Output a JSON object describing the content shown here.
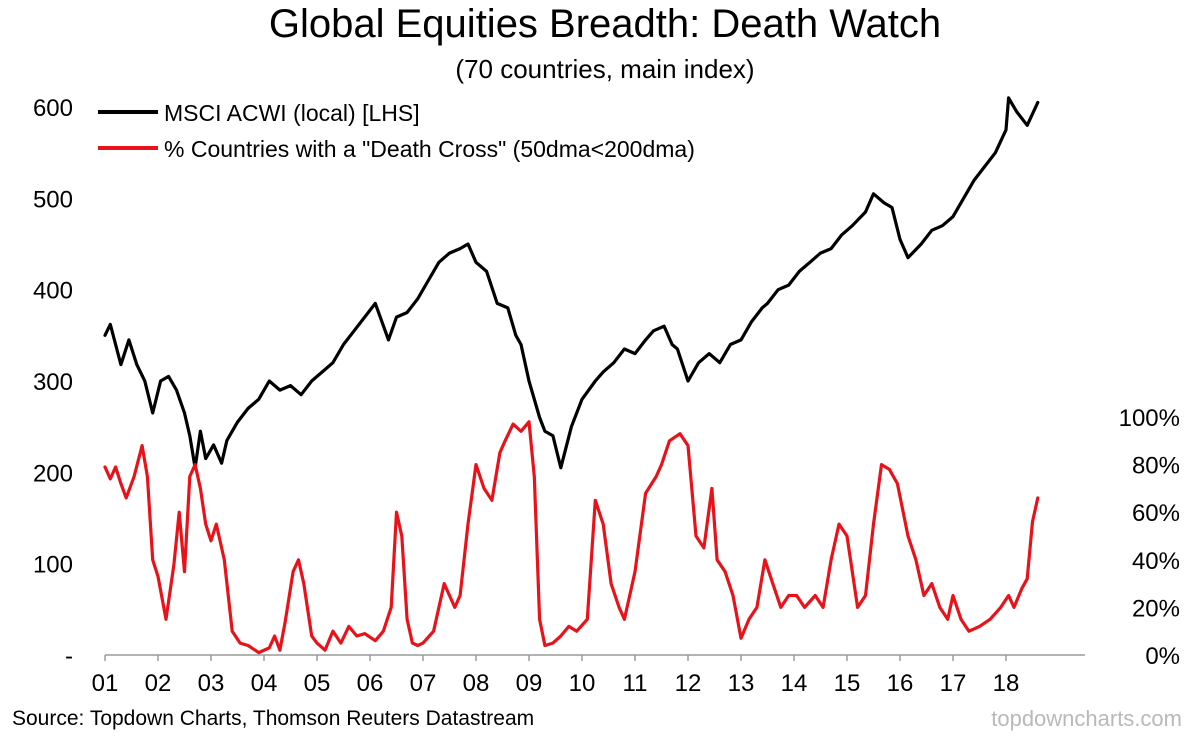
{
  "title": "Global Equities Breadth: Death Watch",
  "subtitle": "(70 countries, main index)",
  "source": "Source: Topdown Charts, Thomson Reuters Datastream",
  "watermark": "topdowncharts.com",
  "colors": {
    "series_1": "#000000",
    "series_2": "#e8131a",
    "watermark": "#b9b9b9"
  },
  "chart_data": {
    "type": "line",
    "grid": false,
    "legend_position": "top-left",
    "x_range": [
      2001.0,
      2018.6
    ],
    "x_tick_labels": [
      "01",
      "02",
      "03",
      "04",
      "05",
      "06",
      "07",
      "08",
      "09",
      "10",
      "11",
      "12",
      "13",
      "14",
      "15",
      "16",
      "17",
      "18"
    ],
    "left_axis": {
      "range": [
        0,
        600
      ],
      "tick_labels": [
        "-",
        "100",
        "200",
        "300",
        "400",
        "500",
        "600"
      ]
    },
    "right_axis": {
      "range": [
        0,
        1.0
      ],
      "tick_labels": [
        "0%",
        "20%",
        "40%",
        "60%",
        "80%",
        "100%"
      ]
    },
    "series": [
      {
        "name": "MSCI ACWI (local) [LHS]",
        "axis": "left",
        "x": [
          2001.0,
          2001.1,
          2001.2,
          2001.3,
          2001.45,
          2001.6,
          2001.75,
          2001.9,
          2002.05,
          2002.2,
          2002.35,
          2002.5,
          2002.6,
          2002.7,
          2002.8,
          2002.9,
          2003.05,
          2003.2,
          2003.3,
          2003.5,
          2003.7,
          2003.9,
          2004.1,
          2004.3,
          2004.5,
          2004.7,
          2004.9,
          2005.1,
          2005.3,
          2005.5,
          2005.7,
          2005.9,
          2006.1,
          2006.35,
          2006.5,
          2006.7,
          2006.9,
          2007.1,
          2007.3,
          2007.5,
          2007.7,
          2007.85,
          2008.0,
          2008.2,
          2008.4,
          2008.6,
          2008.75,
          2008.85,
          2009.0,
          2009.2,
          2009.3,
          2009.45,
          2009.6,
          2009.8,
          2010.0,
          2010.25,
          2010.4,
          2010.6,
          2010.8,
          2011.0,
          2011.2,
          2011.35,
          2011.55,
          2011.7,
          2011.8,
          2012.0,
          2012.2,
          2012.4,
          2012.6,
          2012.8,
          2013.0,
          2013.2,
          2013.4,
          2013.5,
          2013.7,
          2013.9,
          2014.1,
          2014.3,
          2014.5,
          2014.7,
          2014.9,
          2015.1,
          2015.35,
          2015.5,
          2015.7,
          2015.85,
          2016.0,
          2016.15,
          2016.4,
          2016.6,
          2016.8,
          2017.0,
          2017.2,
          2017.4,
          2017.6,
          2017.8,
          2018.0,
          2018.05,
          2018.2,
          2018.4,
          2018.6
        ],
        "y": [
          350,
          362,
          340,
          318,
          345,
          318,
          300,
          265,
          300,
          305,
          290,
          265,
          240,
          205,
          245,
          215,
          230,
          210,
          235,
          255,
          270,
          280,
          300,
          290,
          295,
          285,
          300,
          310,
          320,
          340,
          355,
          370,
          385,
          345,
          370,
          375,
          390,
          410,
          430,
          440,
          445,
          450,
          430,
          420,
          385,
          380,
          350,
          340,
          300,
          260,
          245,
          240,
          205,
          250,
          280,
          300,
          310,
          320,
          335,
          330,
          345,
          355,
          360,
          340,
          335,
          300,
          320,
          330,
          320,
          340,
          345,
          365,
          380,
          385,
          400,
          405,
          420,
          430,
          440,
          445,
          460,
          470,
          485,
          505,
          495,
          490,
          455,
          435,
          450,
          465,
          470,
          480,
          500,
          520,
          535,
          550,
          575,
          610,
          595,
          580,
          605
        ]
      },
      {
        "name": "% Countries with a \"Death Cross\" (50dma<200dma)",
        "axis": "right",
        "x": [
          2001.0,
          2001.1,
          2001.2,
          2001.3,
          2001.4,
          2001.55,
          2001.7,
          2001.8,
          2001.9,
          2002.0,
          2002.15,
          2002.3,
          2002.4,
          2002.5,
          2002.6,
          2002.7,
          2002.8,
          2002.9,
          2003.0,
          2003.1,
          2003.25,
          2003.4,
          2003.55,
          2003.7,
          2003.9,
          2004.1,
          2004.2,
          2004.3,
          2004.4,
          2004.55,
          2004.65,
          2004.75,
          2004.9,
          2005.0,
          2005.15,
          2005.3,
          2005.45,
          2005.6,
          2005.75,
          2005.9,
          2006.1,
          2006.25,
          2006.4,
          2006.5,
          2006.6,
          2006.7,
          2006.8,
          2006.9,
          2007.0,
          2007.2,
          2007.4,
          2007.6,
          2007.7,
          2007.85,
          2008.0,
          2008.15,
          2008.3,
          2008.45,
          2008.55,
          2008.7,
          2008.85,
          2009.0,
          2009.1,
          2009.2,
          2009.3,
          2009.45,
          2009.6,
          2009.75,
          2009.9,
          2010.1,
          2010.25,
          2010.4,
          2010.55,
          2010.7,
          2010.8,
          2011.0,
          2011.2,
          2011.4,
          2011.5,
          2011.65,
          2011.85,
          2012.0,
          2012.15,
          2012.3,
          2012.45,
          2012.55,
          2012.7,
          2012.85,
          2013.0,
          2013.15,
          2013.3,
          2013.45,
          2013.6,
          2013.75,
          2013.9,
          2014.05,
          2014.2,
          2014.4,
          2014.55,
          2014.7,
          2014.85,
          2015.0,
          2015.2,
          2015.35,
          2015.5,
          2015.65,
          2015.8,
          2015.95,
          2016.15,
          2016.3,
          2016.45,
          2016.6,
          2016.75,
          2016.9,
          2017.0,
          2017.15,
          2017.3,
          2017.5,
          2017.7,
          2017.9,
          2018.05,
          2018.15,
          2018.3,
          2018.4,
          2018.5,
          2018.6
        ],
        "y": [
          0.79,
          0.74,
          0.79,
          0.72,
          0.66,
          0.75,
          0.88,
          0.75,
          0.4,
          0.33,
          0.15,
          0.38,
          0.6,
          0.35,
          0.75,
          0.8,
          0.7,
          0.55,
          0.48,
          0.55,
          0.4,
          0.1,
          0.05,
          0.04,
          0.01,
          0.03,
          0.08,
          0.02,
          0.14,
          0.35,
          0.4,
          0.3,
          0.08,
          0.05,
          0.02,
          0.1,
          0.05,
          0.12,
          0.08,
          0.09,
          0.06,
          0.1,
          0.2,
          0.6,
          0.5,
          0.15,
          0.05,
          0.04,
          0.05,
          0.1,
          0.3,
          0.2,
          0.25,
          0.55,
          0.8,
          0.7,
          0.65,
          0.85,
          0.9,
          0.97,
          0.94,
          0.98,
          0.75,
          0.15,
          0.04,
          0.05,
          0.08,
          0.12,
          0.1,
          0.15,
          0.65,
          0.55,
          0.3,
          0.2,
          0.15,
          0.35,
          0.68,
          0.75,
          0.8,
          0.9,
          0.93,
          0.88,
          0.5,
          0.45,
          0.7,
          0.4,
          0.35,
          0.25,
          0.07,
          0.15,
          0.2,
          0.4,
          0.3,
          0.2,
          0.25,
          0.25,
          0.2,
          0.25,
          0.2,
          0.4,
          0.55,
          0.5,
          0.2,
          0.25,
          0.55,
          0.8,
          0.78,
          0.72,
          0.5,
          0.4,
          0.25,
          0.3,
          0.2,
          0.15,
          0.25,
          0.15,
          0.1,
          0.12,
          0.15,
          0.2,
          0.25,
          0.2,
          0.28,
          0.32,
          0.56,
          0.66
        ]
      }
    ]
  }
}
